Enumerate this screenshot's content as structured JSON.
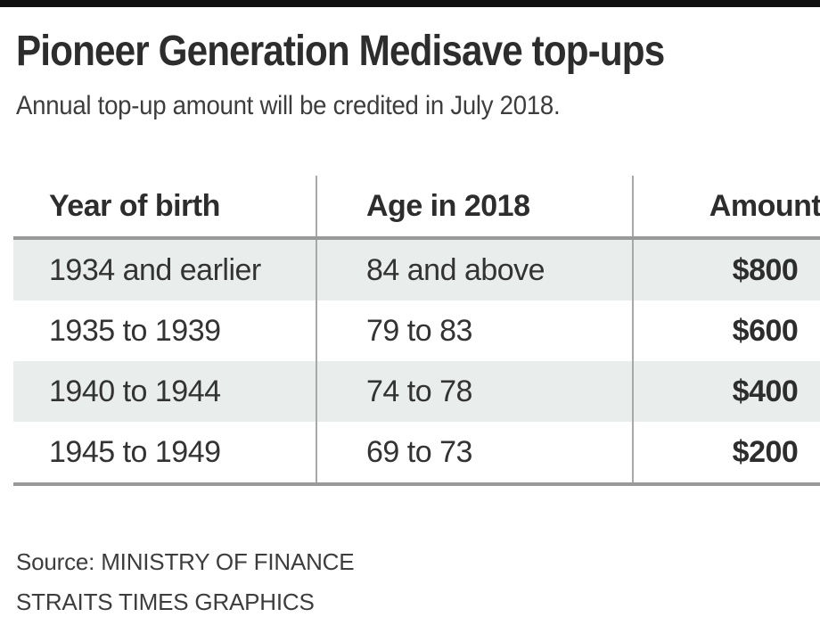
{
  "title": "Pioneer Generation Medisave top-ups",
  "subtitle": "Annual top-up amount will be credited in July 2018.",
  "table": {
    "columns": [
      "Year of birth",
      "Age in 2018",
      "Amount"
    ],
    "rows": [
      [
        "1934 and earlier",
        "84 and above",
        "$800"
      ],
      [
        "1935 to 1939",
        "79 to 83",
        "$600"
      ],
      [
        "1940 to 1944",
        "74 to 78",
        "$400"
      ],
      [
        "1945 to 1949",
        "69 to 73",
        "$200"
      ]
    ]
  },
  "footer": {
    "source": "Source: MINISTRY OF FINANCE",
    "credit": "STRAITS TIMES GRAPHICS"
  },
  "colors": {
    "top_bar": "#111111",
    "title_text": "#2d2d2d",
    "body_text": "#333333",
    "row_shade": "#e9edec",
    "thick_rule": "#999999",
    "column_divider": "#a8a8a8"
  },
  "chart_data": {
    "type": "table",
    "title": "Pioneer Generation Medisave top-ups",
    "subtitle": "Annual top-up amount will be credited in July 2018.",
    "columns": [
      "Year of birth",
      "Age in 2018",
      "Amount"
    ],
    "rows": [
      [
        "1934 and earlier",
        "84 and above",
        "$800"
      ],
      [
        "1935 to 1939",
        "79 to 83",
        "$600"
      ],
      [
        "1940 to 1944",
        "74 to 78",
        "$400"
      ],
      [
        "1945 to 1949",
        "69 to 73",
        "$200"
      ]
    ],
    "amounts_numeric": [
      800,
      600,
      400,
      200
    ],
    "source": "Source: MINISTRY OF FINANCE",
    "credit": "STRAITS TIMES GRAPHICS",
    "layout_hints": {
      "shaded_row_indexes": [
        0,
        2
      ],
      "grid": "horizontal thick rules above and below body, thin vertical column dividers",
      "amount_column_align": "center",
      "other_columns_align": "left"
    }
  }
}
